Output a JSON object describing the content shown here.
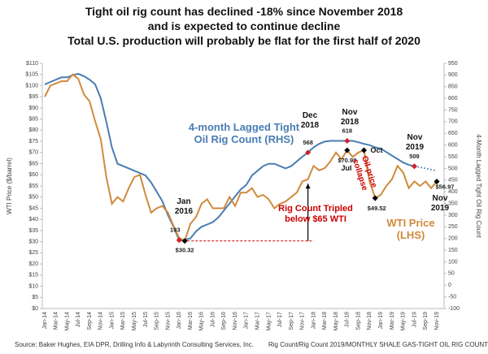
{
  "chart_data": {
    "type": "line",
    "title": [
      "Tight oil rig count has declined -18% since November 2018",
      "and is expected to continue decline"
    ],
    "subtitle": "Total U.S. production will probably be flat for the first half of 2020",
    "ylabel": "WTI Price ($/barrel)",
    "y2label": "4-Month Lagged Tight Oil Rig Count",
    "source": "Source: Baker Hughes, EIA DPR, Drilling Info & Labyrinth Consulting Services, Inc.",
    "file_note": "Rig Count/Rig Count 2019/MONTHLY SHALE GAS-TIGHT OIL RIG COUNT",
    "categories": [
      "Jan-14",
      null,
      "Mar-14",
      null,
      "May-14",
      null,
      "Jul-14",
      null,
      "Sep-14",
      null,
      "Nov-14",
      null,
      "Jan-15",
      null,
      "Mar-15",
      null,
      "May-15",
      null,
      "Jul-15",
      null,
      "Sep-15",
      null,
      "Nov-15",
      null,
      "Jan-16",
      null,
      "Mar-16",
      null,
      "May-16",
      null,
      "Jul-16",
      null,
      "Sep-16",
      null,
      "Nov-16",
      null,
      "Jan-17",
      null,
      "Mar-17",
      null,
      "May-17",
      null,
      "Jul-17",
      null,
      "Sep-17",
      null,
      "Nov-17",
      null,
      "Jan-18",
      null,
      "Mar-18",
      null,
      "May-18",
      null,
      "Jul-18",
      null,
      "Sep-18",
      null,
      "Nov-18",
      null,
      "Jan-19",
      null,
      "Mar-19",
      null,
      "May-19",
      null,
      "Jul-19",
      null,
      "Sep-19",
      null,
      "Nov-19"
    ],
    "series": [
      {
        "name": "4-month Lagged Tight Oil Rig Count (RHS)",
        "color": "#4a7db3",
        "axis": "y2",
        "style": "solid",
        "values": [
          860,
          870,
          880,
          890,
          890,
          900,
          905,
          895,
          880,
          860,
          800,
          700,
          590,
          520,
          510,
          500,
          490,
          480,
          470,
          440,
          400,
          360,
          300,
          250,
          193,
          195,
          200,
          230,
          250,
          260,
          270,
          290,
          320,
          350,
          380,
          410,
          430,
          470,
          490,
          510,
          520,
          520,
          510,
          500,
          510,
          530,
          550,
          568,
          590,
          605,
          615,
          618,
          618,
          618,
          618,
          618,
          612,
          605,
          600,
          590,
          585,
          570,
          555,
          540,
          525,
          515,
          509,
          null,
          null,
          null,
          null
        ],
        "value_labels": [
          null,
          null,
          null,
          null,
          null,
          null,
          null,
          null,
          null,
          null,
          null,
          null,
          null,
          null,
          null,
          null,
          null,
          null,
          null,
          null,
          null,
          null,
          null,
          null,
          "193",
          null,
          null,
          null,
          null,
          null,
          null,
          null,
          null,
          null,
          null,
          null,
          null,
          null,
          null,
          null,
          null,
          null,
          null,
          null,
          null,
          null,
          null,
          "568",
          null,
          null,
          null,
          null,
          null,
          null,
          "618",
          null,
          null,
          null,
          null,
          null,
          null,
          null,
          null,
          null,
          null,
          null,
          "509",
          null,
          null,
          null,
          null
        ]
      },
      {
        "name": "WTI Price (LHS)",
        "color": "#d08a3c",
        "axis": "y",
        "style": "solid",
        "values": [
          95,
          100,
          101,
          102,
          102,
          105,
          103,
          96,
          93,
          84,
          76,
          59,
          47,
          50,
          48,
          54,
          59,
          60,
          51,
          43,
          45,
          46,
          43,
          37,
          31.7,
          30.32,
          38,
          41,
          47,
          49,
          45,
          45,
          45,
          50,
          46,
          52,
          52,
          54,
          50,
          51,
          49,
          45,
          47,
          48,
          50,
          52,
          57,
          58,
          64,
          62,
          63,
          66,
          70,
          67,
          70.98,
          68,
          70,
          71,
          57,
          49.52,
          51,
          55,
          58,
          64,
          61,
          54,
          57,
          55,
          57,
          54,
          56.97
        ],
        "value_labels": [
          null,
          null,
          null,
          null,
          null,
          null,
          null,
          null,
          null,
          null,
          null,
          null,
          null,
          null,
          null,
          null,
          null,
          null,
          null,
          null,
          null,
          null,
          null,
          null,
          null,
          "$30.32",
          null,
          null,
          null,
          null,
          null,
          null,
          null,
          null,
          null,
          null,
          null,
          null,
          null,
          null,
          null,
          null,
          null,
          null,
          null,
          null,
          null,
          null,
          null,
          null,
          null,
          null,
          null,
          null,
          "$70.98",
          null,
          null,
          null,
          null,
          "$49.52",
          null,
          null,
          null,
          null,
          null,
          null,
          null,
          null,
          null,
          null,
          "$56.97"
        ]
      },
      {
        "color": "#4a7db3",
        "axis": "y2",
        "style": "dotted",
        "values": [
          null,
          null,
          null,
          null,
          null,
          null,
          null,
          null,
          null,
          null,
          null,
          null,
          null,
          null,
          null,
          null,
          null,
          null,
          null,
          null,
          null,
          null,
          null,
          null,
          null,
          null,
          null,
          null,
          null,
          null,
          null,
          null,
          null,
          null,
          null,
          null,
          null,
          null,
          null,
          null,
          null,
          null,
          null,
          null,
          null,
          null,
          null,
          null,
          null,
          null,
          null,
          null,
          null,
          null,
          null,
          null,
          null,
          null,
          null,
          null,
          null,
          null,
          null,
          null,
          null,
          null,
          509,
          505,
          500,
          495,
          490
        ]
      }
    ],
    "annotations": [
      "Rig Count Tripled below $65 WTI",
      "Oil-price collapse",
      "Jan 2016",
      "Dec 2018",
      "Nov 2018",
      "Nov 2019",
      "Jul",
      "Oct",
      "Nov 2019"
    ],
    "ylim": [
      0,
      110
    ],
    "yticks": [
      {
        "value": 0,
        "label": "$0"
      },
      {
        "value": 5,
        "label": "$5"
      },
      {
        "value": 10,
        "label": "$10"
      },
      {
        "value": 15,
        "label": "$15"
      },
      {
        "value": 20,
        "label": "$20"
      },
      {
        "value": 25,
        "label": "$25"
      },
      {
        "value": 30,
        "label": "$30"
      },
      {
        "value": 35,
        "label": "$35"
      },
      {
        "value": 40,
        "label": "$40"
      },
      {
        "value": 45,
        "label": "$45"
      },
      {
        "value": 50,
        "label": "$50"
      },
      {
        "value": 55,
        "label": "$55"
      },
      {
        "value": 60,
        "label": "$60"
      },
      {
        "value": 65,
        "label": "$65"
      },
      {
        "value": 70,
        "label": "$70"
      },
      {
        "value": 75,
        "label": "$75"
      },
      {
        "value": 80,
        "label": "$80"
      },
      {
        "value": 85,
        "label": "$85"
      },
      {
        "value": 90,
        "label": "$90"
      },
      {
        "value": 95,
        "label": "$95"
      },
      {
        "value": 100,
        "label": "$100"
      },
      {
        "value": 105,
        "label": "$105"
      },
      {
        "value": 110,
        "label": "$110"
      }
    ],
    "y2lim": [
      -100,
      950
    ],
    "y2ticks": [
      -100,
      -50,
      0,
      50,
      100,
      150,
      200,
      250,
      300,
      350,
      400,
      450,
      500,
      550,
      600,
      650,
      700,
      750,
      800,
      850,
      900,
      950
    ],
    "grid": false
  }
}
